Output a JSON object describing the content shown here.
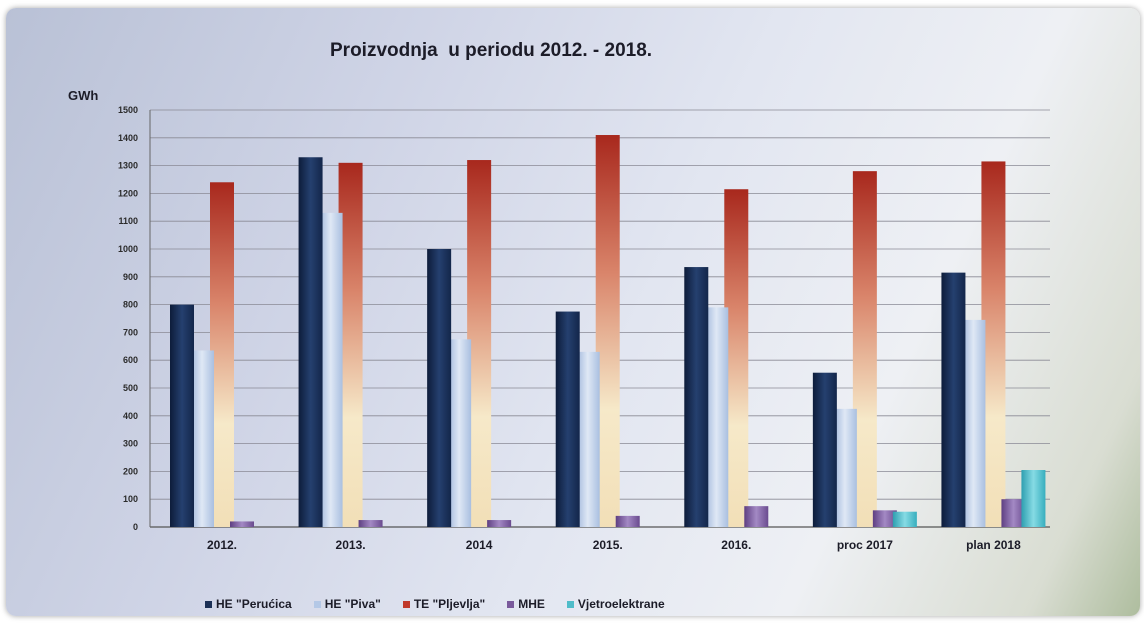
{
  "chart_data": {
    "type": "bar",
    "title": "Proizvodnja  u periodu 2012. - 2018.",
    "ylabel": "GWh",
    "xlabel": "",
    "ylim": [
      0,
      1500
    ],
    "yticks": [
      0,
      100,
      200,
      300,
      400,
      500,
      600,
      700,
      800,
      900,
      1000,
      1100,
      1200,
      1300,
      1400,
      1500
    ],
    "grid": true,
    "legend_position": "bottom",
    "categories": [
      "2012.",
      "2013.",
      "2014",
      "2015.",
      "2016.",
      "proc 2017",
      "plan 2018"
    ],
    "series": [
      {
        "name": "HE \"Perućica",
        "color": "#1b2f55",
        "values": [
          800,
          1330,
          1000,
          775,
          935,
          555,
          915
        ]
      },
      {
        "name": "HE \"Piva\"",
        "color": "#b4c8e6",
        "values": [
          635,
          1130,
          675,
          630,
          790,
          425,
          745
        ]
      },
      {
        "name": "TE \"Pljevlja\"",
        "color": "#c0392b",
        "values": [
          1240,
          1310,
          1320,
          1410,
          1215,
          1280,
          1315
        ]
      },
      {
        "name": "MHE",
        "color": "#7a5a9c",
        "values": [
          20,
          25,
          25,
          40,
          75,
          60,
          100
        ]
      },
      {
        "name": "Vjetroelektrane",
        "color": "#4fbcc9",
        "values": [
          0,
          0,
          0,
          0,
          0,
          55,
          205
        ]
      }
    ]
  }
}
